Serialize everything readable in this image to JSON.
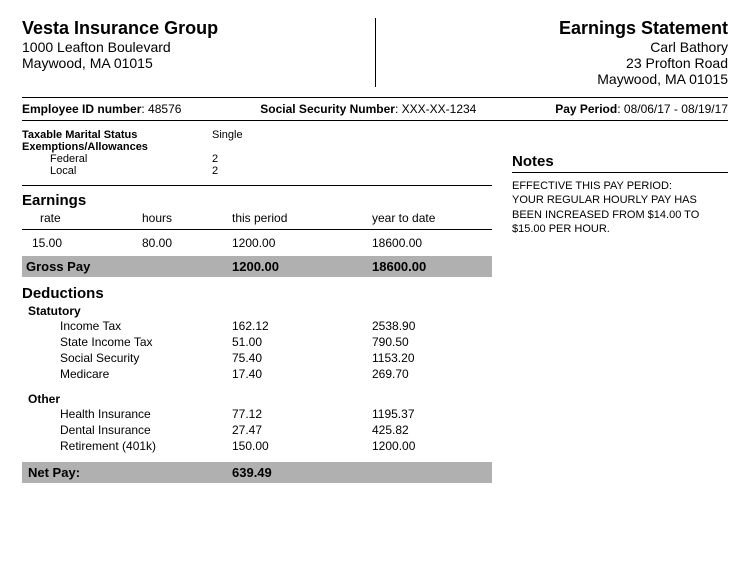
{
  "company": {
    "name": "Vesta Insurance Group",
    "address1": "1000 Leafton Boulevard",
    "address2": "Maywood, MA 01015"
  },
  "statement": {
    "title": "Earnings Statement",
    "employee_name": "Carl Bathory",
    "employee_addr1": "23 Profton Road",
    "employee_addr2": "Maywood, MA 01015"
  },
  "info": {
    "emp_id_label": "Employee ID number",
    "emp_id_value": "48576",
    "ssn_label": "Social Security Number",
    "ssn_value": "XXX-XX-1234",
    "period_label": "Pay Period",
    "period_value": "08/06/17 - 08/19/17"
  },
  "tax": {
    "marital_label": "Taxable Marital Status",
    "marital_value": "Single",
    "exemptions_label": "Exemptions/Allowances",
    "federal_label": "Federal",
    "federal_value": "2",
    "local_label": "Local",
    "local_value": "2"
  },
  "earnings": {
    "title": "Earnings",
    "hdr_rate": "rate",
    "hdr_hours": "hours",
    "hdr_period": "this period",
    "hdr_ytd": "year to date",
    "row": {
      "rate": "15.00",
      "hours": "80.00",
      "period": "1200.00",
      "ytd": "18600.00"
    },
    "gross_label": "Gross Pay",
    "gross_period": "1200.00",
    "gross_ytd": "18600.00"
  },
  "deductions": {
    "title": "Deductions",
    "statutory_label": "Statutory",
    "statutory": [
      {
        "name": "Income Tax",
        "period": "162.12",
        "ytd": "2538.90"
      },
      {
        "name": "State Income Tax",
        "period": "51.00",
        "ytd": "790.50"
      },
      {
        "name": "Social Security",
        "period": "75.40",
        "ytd": "1153.20"
      },
      {
        "name": "Medicare",
        "period": "17.40",
        "ytd": "269.70"
      }
    ],
    "other_label": "Other",
    "other": [
      {
        "name": "Health Insurance",
        "period": "77.12",
        "ytd": "1195.37"
      },
      {
        "name": "Dental Insurance",
        "period": "27.47",
        "ytd": "425.82"
      },
      {
        "name": "Retirement (401k)",
        "period": "150.00",
        "ytd": "1200.00"
      }
    ]
  },
  "net": {
    "label": "Net Pay:",
    "value": "639.49"
  },
  "notes": {
    "title": "Notes",
    "body": "EFFECTIVE THIS PAY PERIOD:\nYOUR REGULAR HOURLY PAY HAS BEEN INCREASED FROM $14.00 TO $15.00 PER HOUR."
  },
  "colors": {
    "highlight_bg": "#b0b0b0",
    "text": "#000000",
    "bg": "#ffffff"
  }
}
